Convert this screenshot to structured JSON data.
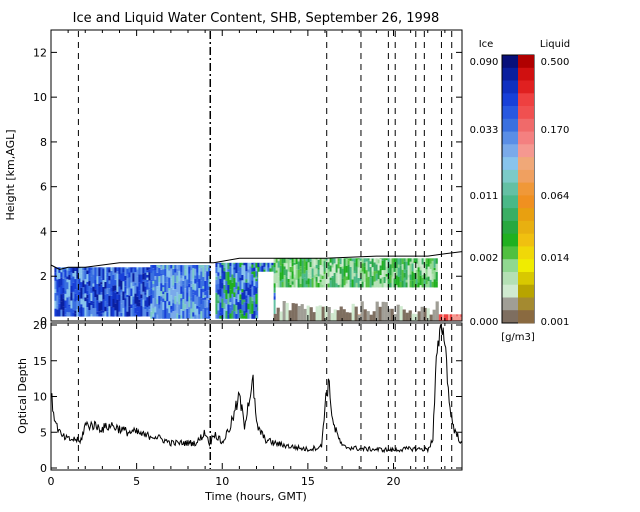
{
  "chart_data": [
    {
      "type": "heatmap",
      "title": "Ice and Liquid Water Content, SHB, September 26, 1998",
      "ylabel": "Height [km,AGL]",
      "xlim": [
        0,
        24
      ],
      "ylim": [
        0,
        13
      ],
      "yticks": [
        0,
        2,
        4,
        6,
        8,
        10,
        12
      ],
      "regions": [
        {
          "phase": "ice",
          "x_start": 0.2,
          "x_end": 5.8,
          "height_km": [
            0.2,
            2.4
          ],
          "intensity": "high"
        },
        {
          "phase": "ice",
          "x_start": 5.8,
          "x_end": 9.3,
          "height_km": [
            0.1,
            2.5
          ],
          "intensity": "medium"
        },
        {
          "phase": "ice",
          "x_start": 9.6,
          "x_end": 13.0,
          "height_km": [
            0.1,
            2.6
          ],
          "intensity": "mixed"
        },
        {
          "phase": "ice",
          "x_start": 13.0,
          "x_end": 22.5,
          "height_km": [
            1.5,
            2.8
          ],
          "intensity": "low"
        },
        {
          "phase": "liquid",
          "x_start": 15.5,
          "x_end": 18.5,
          "height_km": [
            0.0,
            0.3
          ],
          "intensity": "medium"
        },
        {
          "phase": "liquid",
          "x_start": 22.6,
          "x_end": 24.0,
          "height_km": [
            0.0,
            0.3
          ],
          "intensity": "high"
        }
      ],
      "cloud_top_km": [
        [
          0,
          2.5
        ],
        [
          0.5,
          2.3
        ],
        [
          1,
          2.4
        ],
        [
          2,
          2.4
        ],
        [
          4,
          2.6
        ],
        [
          6,
          2.6
        ],
        [
          8,
          2.6
        ],
        [
          9.5,
          2.6
        ],
        [
          11,
          2.8
        ],
        [
          13,
          2.8
        ],
        [
          16,
          2.8
        ],
        [
          19,
          2.9
        ],
        [
          22,
          2.9
        ],
        [
          23,
          3.0
        ],
        [
          24,
          3.1
        ]
      ]
    },
    {
      "type": "line",
      "xlabel": "Time (hours, GMT)",
      "ylabel": "Optical Depth",
      "xlim": [
        0,
        24
      ],
      "ylim": [
        0,
        20
      ],
      "xticks": [
        0,
        5,
        10,
        15,
        20
      ],
      "yticks": [
        0,
        5,
        10,
        15,
        20
      ],
      "series": [
        {
          "x": [
            0,
            0.3,
            0.6,
            1,
            1.5,
            1.7,
            2,
            2.5,
            3,
            3.5,
            4,
            4.5,
            5,
            5.5,
            6,
            7,
            8,
            8.5,
            9,
            9.3,
            9.5,
            10,
            10.5,
            11,
            11.3,
            11.5,
            11.8,
            12,
            12.5,
            13,
            14,
            15,
            15.8,
            16,
            16.2,
            16.5,
            17,
            18,
            19,
            20,
            21,
            22,
            22.3,
            22.5,
            22.8,
            23,
            23.3,
            23.6,
            24
          ],
          "y": [
            10,
            6,
            4.5,
            4,
            4,
            3.5,
            6,
            6,
            5.5,
            6,
            5.5,
            5,
            5,
            4.5,
            4.5,
            3.5,
            3.5,
            3.5,
            5,
            3.3,
            5,
            3.5,
            6,
            10,
            6,
            9,
            12,
            6,
            4,
            3.5,
            3,
            2.6,
            3,
            9,
            12,
            6,
            3,
            2.7,
            2.6,
            2.5,
            2.7,
            2.6,
            4,
            15,
            20,
            18,
            8,
            5,
            3.5
          ]
        }
      ]
    }
  ],
  "colorbar": {
    "ice_title": "Ice",
    "liquid_title": "Liquid",
    "ice_labels": [
      "0.090",
      "0.033",
      "0.011",
      "0.002",
      "0.000"
    ],
    "liquid_labels": [
      "0.500",
      "0.170",
      "0.064",
      "0.014",
      "0.001"
    ],
    "unit": "[g/m3]",
    "ice_colors": [
      "#08107a",
      "#0a1f9e",
      "#1030c0",
      "#1840d8",
      "#2858e0",
      "#3a70e0",
      "#5a8ee6",
      "#7aaaea",
      "#88c4ec",
      "#7ccac8",
      "#64c0a4",
      "#4ab888",
      "#3aae64",
      "#28a840",
      "#20b020",
      "#50c040",
      "#90d890",
      "#b4e0b4",
      "#d0ead0",
      "#a09e96",
      "#7e6e60"
    ],
    "liquid_colors": [
      "#b00000",
      "#d01010",
      "#e02020",
      "#ee4040",
      "#f05050",
      "#f06a6a",
      "#f48080",
      "#f59890",
      "#f0a878",
      "#f0a060",
      "#f09838",
      "#f09020",
      "#e8a010",
      "#e8b010",
      "#f0c010",
      "#f0d808",
      "#f0ec00",
      "#d8c800",
      "#b8a400",
      "#a48a30",
      "#8a6a40"
    ]
  },
  "vertical_lines": {
    "dashed_hours": [
      1.6,
      16.1,
      18.1,
      19.7,
      20.1,
      21.3,
      21.8,
      22.8,
      23.4
    ],
    "dashdot_hours": [
      9.3
    ]
  }
}
